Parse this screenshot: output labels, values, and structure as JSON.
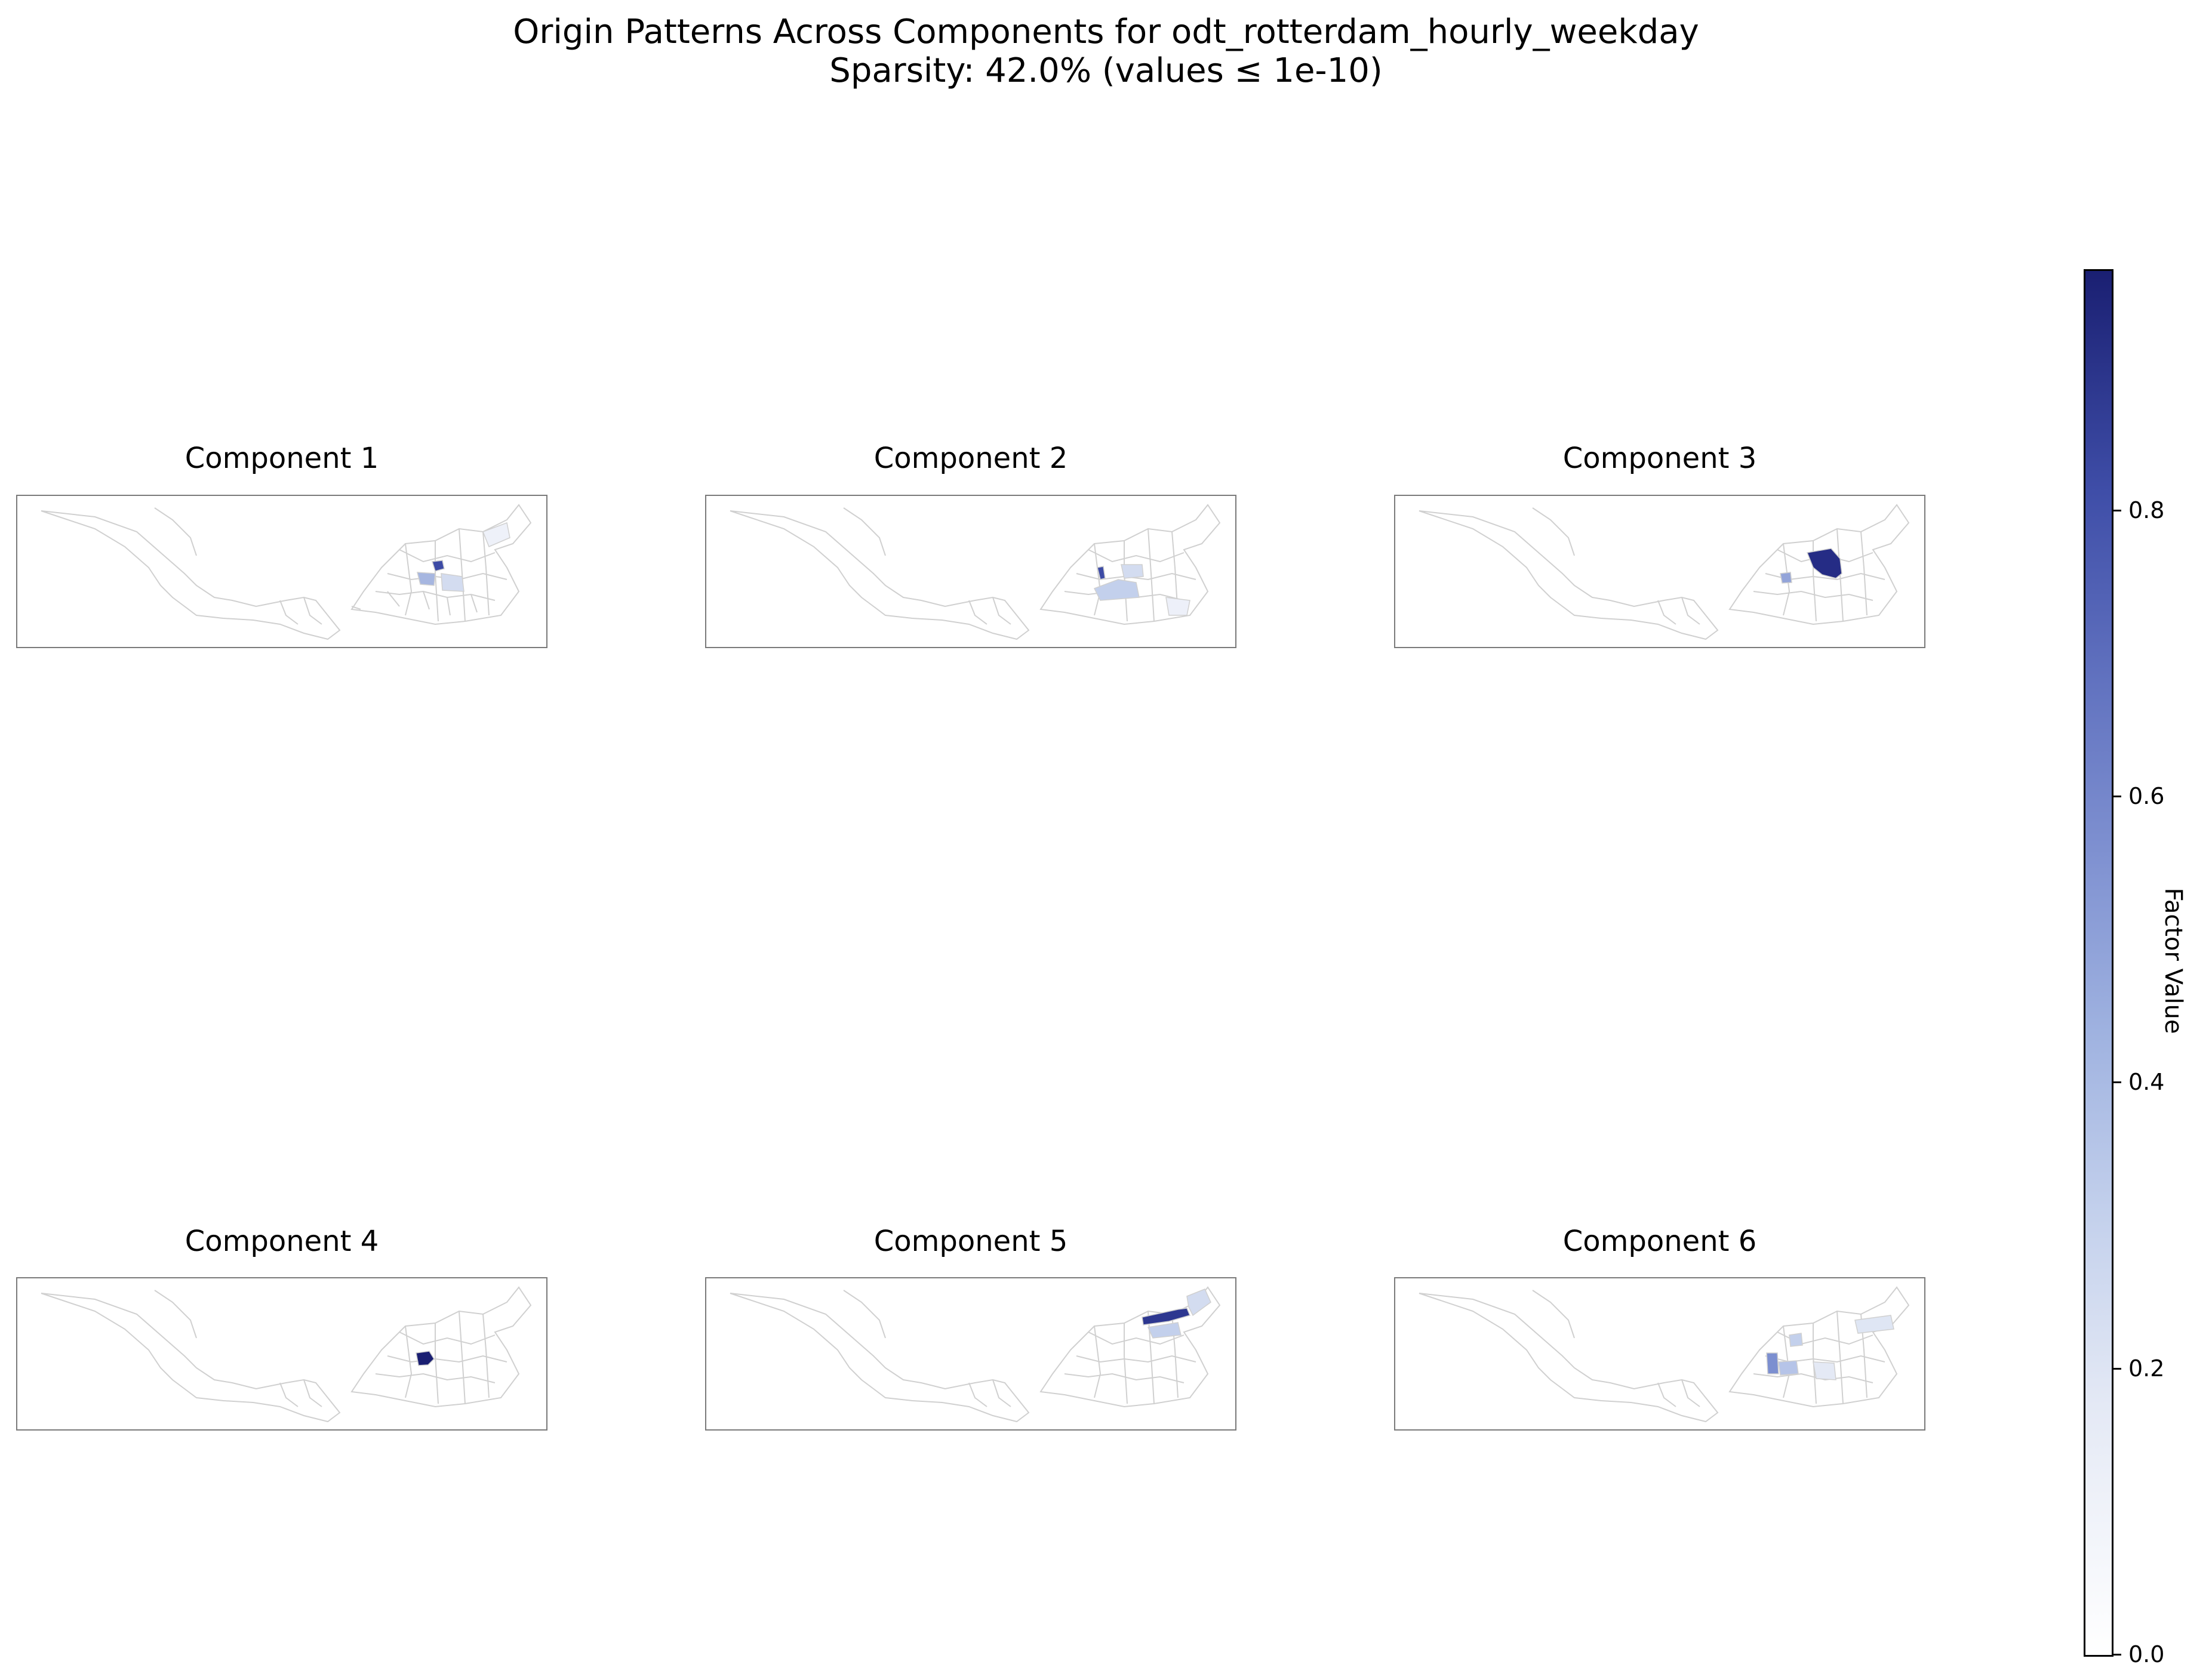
{
  "figure": {
    "title_line1": "Origin Patterns Across Components for odt_rotterdam_hourly_weekday",
    "title_line2": "Sparsity: 42.0% (values ≤ 1e-10)"
  },
  "panels": [
    {
      "title": "Component 1"
    },
    {
      "title": "Component 2"
    },
    {
      "title": "Component 3"
    },
    {
      "title": "Component 4"
    },
    {
      "title": "Component 5"
    },
    {
      "title": "Component 6"
    }
  ],
  "colorbar": {
    "label": "Factor Value",
    "ticks": [
      "0.0",
      "0.2",
      "0.4",
      "0.6",
      "0.8"
    ],
    "range": [
      0.0,
      0.96
    ],
    "colormap": "white-to-navy (#ffffff → #1a1f72)"
  },
  "colors": {
    "boundary": "#d0d0d0",
    "frame": "#7a7a7a"
  },
  "chart_data": {
    "type": "choropleth",
    "region": "Rotterdam (origin zones)",
    "value_name": "Factor Value",
    "highlighted_zones": [
      {
        "component": 1,
        "zones": [
          {
            "area": "centre north",
            "value": 0.85
          },
          {
            "area": "centre west",
            "value": 0.45
          },
          {
            "area": "centre east",
            "value": 0.3
          },
          {
            "area": "north east",
            "value": 0.15
          }
        ]
      },
      {
        "component": 2,
        "zones": [
          {
            "area": "centre",
            "value": 0.8
          },
          {
            "area": "south centre",
            "value": 0.35
          },
          {
            "area": "centre east",
            "value": 0.3
          },
          {
            "area": "south east",
            "value": 0.12
          }
        ]
      },
      {
        "component": 3,
        "zones": [
          {
            "area": "east",
            "value": 0.92
          },
          {
            "area": "centre",
            "value": 0.5
          }
        ]
      },
      {
        "component": 4,
        "zones": [
          {
            "area": "centre",
            "value": 0.96
          }
        ]
      },
      {
        "component": 5,
        "zones": [
          {
            "area": "north east corridor",
            "value": 0.88
          },
          {
            "area": "north east lower",
            "value": 0.35
          },
          {
            "area": "far north east",
            "value": 0.2
          }
        ]
      },
      {
        "component": 6,
        "zones": [
          {
            "area": "south centre",
            "value": 0.6
          },
          {
            "area": "centre",
            "value": 0.3
          },
          {
            "area": "north east",
            "value": 0.18
          },
          {
            "area": "east",
            "value": 0.2
          }
        ]
      }
    ]
  }
}
